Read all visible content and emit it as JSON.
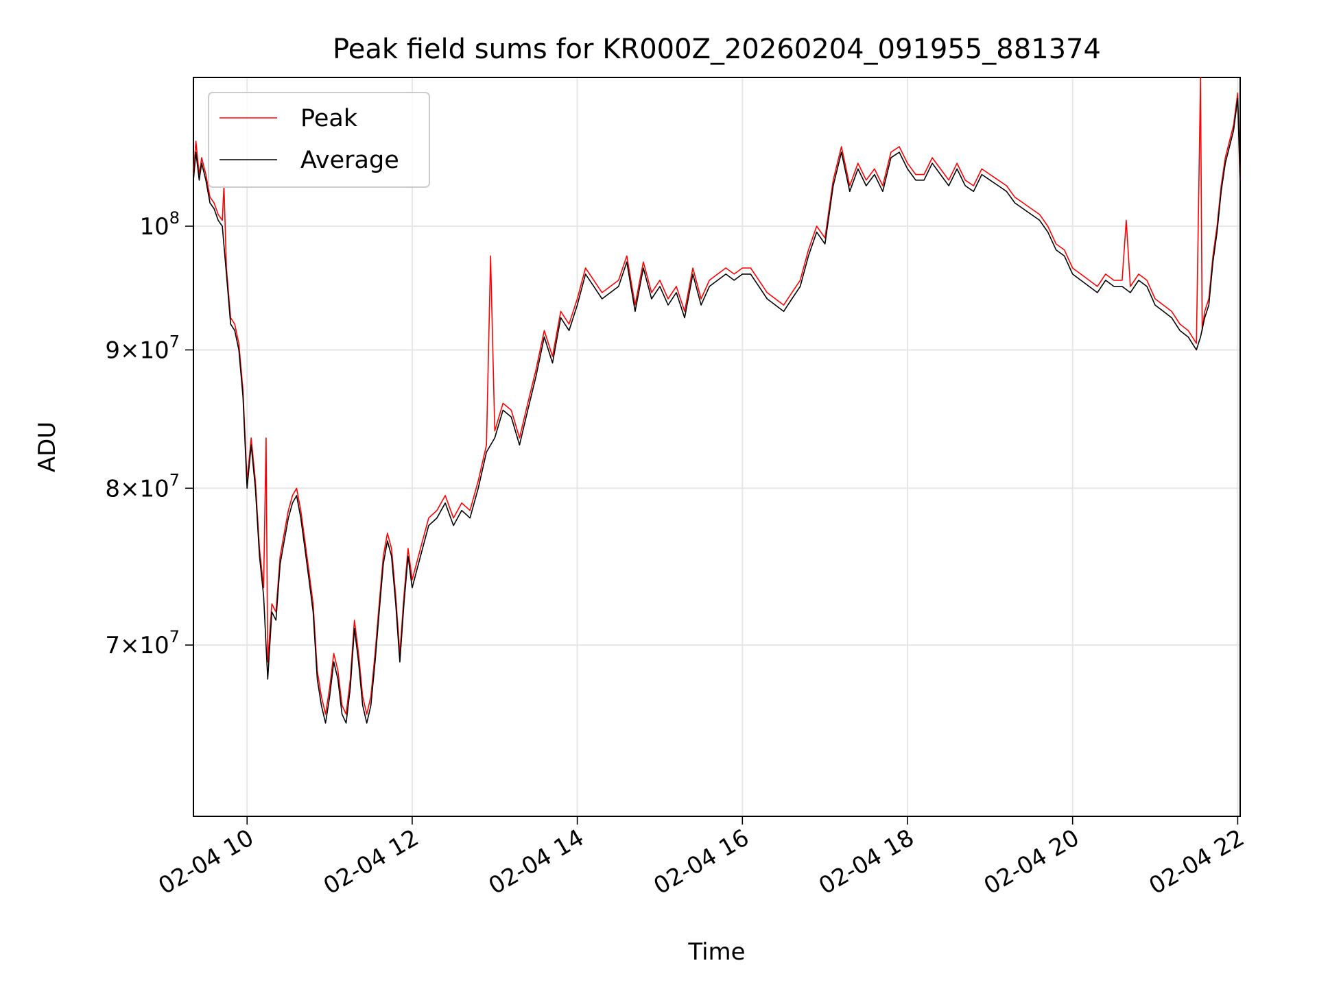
{
  "chart_data": {
    "type": "line",
    "title": "Peak field sums for KR000Z_20260204_091955_881374",
    "xlabel": "Time",
    "ylabel": "ADU",
    "x_unit": "hours since 02-04 00:00",
    "xlim": [
      9.35,
      22.03
    ],
    "ylim": [
      60500000,
      113500000
    ],
    "yscale": "log",
    "grid": true,
    "legend_position": "top-left",
    "x_ticks": [
      {
        "value": 10,
        "label": "02-04 10"
      },
      {
        "value": 12,
        "label": "02-04 12"
      },
      {
        "value": 14,
        "label": "02-04 14"
      },
      {
        "value": 16,
        "label": "02-04 16"
      },
      {
        "value": 18,
        "label": "02-04 18"
      },
      {
        "value": 20,
        "label": "02-04 20"
      },
      {
        "value": 22,
        "label": "02-04 22"
      }
    ],
    "y_ticks": [
      {
        "value": 70000000,
        "mantissa": "7",
        "exponent": "7"
      },
      {
        "value": 80000000,
        "mantissa": "8",
        "exponent": "7"
      },
      {
        "value": 90000000,
        "mantissa": "9",
        "exponent": "7"
      },
      {
        "value": 100000000,
        "mantissa": "",
        "exponent": "8"
      }
    ],
    "series": [
      {
        "name": "Average",
        "color": "#000000",
        "x": [
          9.35,
          9.38,
          9.42,
          9.45,
          9.5,
          9.55,
          9.6,
          9.65,
          9.7,
          9.75,
          9.8,
          9.85,
          9.9,
          9.95,
          10.0,
          10.05,
          10.1,
          10.15,
          10.2,
          10.25,
          10.3,
          10.35,
          10.4,
          10.45,
          10.5,
          10.55,
          10.6,
          10.65,
          10.7,
          10.75,
          10.8,
          10.85,
          10.9,
          10.95,
          11.0,
          11.05,
          11.1,
          11.15,
          11.2,
          11.25,
          11.3,
          11.35,
          11.4,
          11.45,
          11.5,
          11.55,
          11.6,
          11.65,
          11.7,
          11.75,
          11.8,
          11.85,
          11.9,
          11.95,
          12.0,
          12.1,
          12.2,
          12.3,
          12.4,
          12.5,
          12.6,
          12.7,
          12.8,
          12.9,
          13.0,
          13.1,
          13.2,
          13.3,
          13.4,
          13.5,
          13.6,
          13.7,
          13.8,
          13.9,
          14.0,
          14.1,
          14.2,
          14.3,
          14.4,
          14.5,
          14.6,
          14.7,
          14.8,
          14.9,
          15.0,
          15.1,
          15.2,
          15.3,
          15.4,
          15.5,
          15.6,
          15.7,
          15.8,
          15.9,
          16.0,
          16.1,
          16.2,
          16.3,
          16.4,
          16.5,
          16.6,
          16.7,
          16.8,
          16.9,
          17.0,
          17.1,
          17.2,
          17.3,
          17.4,
          17.5,
          17.6,
          17.7,
          17.8,
          17.9,
          18.0,
          18.1,
          18.2,
          18.3,
          18.4,
          18.5,
          18.6,
          18.7,
          18.8,
          18.9,
          19.0,
          19.1,
          19.2,
          19.3,
          19.4,
          19.5,
          19.6,
          19.7,
          19.8,
          19.9,
          20.0,
          20.1,
          20.2,
          20.3,
          20.4,
          20.5,
          20.6,
          20.7,
          20.8,
          20.9,
          21.0,
          21.1,
          21.2,
          21.3,
          21.4,
          21.5,
          21.55,
          21.6,
          21.65,
          21.7,
          21.75,
          21.8,
          21.85,
          21.9,
          21.95,
          22.0,
          22.03
        ],
        "values": [
          104000000,
          106500000,
          104000000,
          105500000,
          104000000,
          102000000,
          101500000,
          100500000,
          100000000,
          96000000,
          92000000,
          91500000,
          90000000,
          86500000,
          80000000,
          83000000,
          80000000,
          75500000,
          73000000,
          68000000,
          72000000,
          71500000,
          75000000,
          76500000,
          78000000,
          79000000,
          79500000,
          78000000,
          76000000,
          74000000,
          72000000,
          68000000,
          66500000,
          65500000,
          67000000,
          69000000,
          68000000,
          66000000,
          65500000,
          67500000,
          71000000,
          69000000,
          66500000,
          65500000,
          66500000,
          69000000,
          72000000,
          75000000,
          76500000,
          75500000,
          72500000,
          69000000,
          72500000,
          75500000,
          73500000,
          75500000,
          77500000,
          78000000,
          79000000,
          77500000,
          78500000,
          78000000,
          80000000,
          82500000,
          83500000,
          85500000,
          85000000,
          83000000,
          85500000,
          88000000,
          91000000,
          89000000,
          92500000,
          91500000,
          93500000,
          96000000,
          95000000,
          94000000,
          94500000,
          95000000,
          97000000,
          93000000,
          96500000,
          94000000,
          95000000,
          93500000,
          94500000,
          92500000,
          96000000,
          93500000,
          95000000,
          95500000,
          96000000,
          95500000,
          96000000,
          96000000,
          95000000,
          94000000,
          93500000,
          93000000,
          94000000,
          95000000,
          97500000,
          99500000,
          98500000,
          103500000,
          106500000,
          103000000,
          105000000,
          103500000,
          104500000,
          103000000,
          106000000,
          106500000,
          105000000,
          104000000,
          104000000,
          105500000,
          104500000,
          103500000,
          105000000,
          103500000,
          103000000,
          104500000,
          104000000,
          103500000,
          103000000,
          102000000,
          101500000,
          101000000,
          100500000,
          99500000,
          98000000,
          97500000,
          96000000,
          95500000,
          95000000,
          94500000,
          95500000,
          95000000,
          95000000,
          94500000,
          95500000,
          95000000,
          93500000,
          93000000,
          92500000,
          91500000,
          91000000,
          90000000,
          91000000,
          92500000,
          93500000,
          97000000,
          99500000,
          103000000,
          105500000,
          107000000,
          108500000,
          111500000,
          103500000
        ]
      },
      {
        "name": "Peak",
        "color": "#ff0000",
        "x": [
          9.35,
          9.38,
          9.42,
          9.45,
          9.5,
          9.55,
          9.6,
          9.65,
          9.7,
          9.72,
          9.75,
          9.8,
          9.85,
          9.9,
          9.95,
          10.0,
          10.05,
          10.1,
          10.15,
          10.2,
          10.23,
          10.25,
          10.3,
          10.35,
          10.4,
          10.45,
          10.5,
          10.55,
          10.6,
          10.65,
          10.7,
          10.75,
          10.8,
          10.85,
          10.9,
          10.95,
          11.0,
          11.05,
          11.1,
          11.15,
          11.2,
          11.25,
          11.3,
          11.35,
          11.4,
          11.45,
          11.5,
          11.55,
          11.6,
          11.65,
          11.7,
          11.75,
          11.8,
          11.85,
          11.9,
          11.95,
          12.0,
          12.1,
          12.2,
          12.3,
          12.4,
          12.5,
          12.6,
          12.7,
          12.8,
          12.9,
          12.95,
          13.0,
          13.1,
          13.2,
          13.3,
          13.4,
          13.5,
          13.6,
          13.7,
          13.8,
          13.9,
          14.0,
          14.1,
          14.2,
          14.3,
          14.4,
          14.5,
          14.6,
          14.7,
          14.8,
          14.9,
          15.0,
          15.1,
          15.2,
          15.3,
          15.4,
          15.5,
          15.6,
          15.7,
          15.8,
          15.9,
          16.0,
          16.1,
          16.2,
          16.3,
          16.4,
          16.5,
          16.6,
          16.7,
          16.8,
          16.9,
          17.0,
          17.1,
          17.2,
          17.3,
          17.4,
          17.5,
          17.6,
          17.7,
          17.8,
          17.9,
          18.0,
          18.1,
          18.2,
          18.3,
          18.4,
          18.5,
          18.6,
          18.7,
          18.8,
          18.9,
          19.0,
          19.1,
          19.2,
          19.3,
          19.4,
          19.5,
          19.6,
          19.7,
          19.8,
          19.9,
          20.0,
          20.1,
          20.2,
          20.3,
          20.4,
          20.5,
          20.6,
          20.65,
          20.7,
          20.8,
          20.9,
          21.0,
          21.1,
          21.2,
          21.3,
          21.4,
          21.5,
          21.55,
          21.57,
          21.6,
          21.65,
          21.7,
          21.75,
          21.8,
          21.85,
          21.9,
          21.95,
          22.0,
          22.03
        ],
        "values": [
          104500000,
          107500000,
          104500000,
          106000000,
          104500000,
          102500000,
          102000000,
          101000000,
          100500000,
          103500000,
          96500000,
          92500000,
          92000000,
          90500000,
          87000000,
          80500000,
          83500000,
          80500000,
          76000000,
          73500000,
          83500000,
          69000000,
          72500000,
          72000000,
          75500000,
          77000000,
          78500000,
          79500000,
          80000000,
          78500000,
          76500000,
          74500000,
          72500000,
          68500000,
          67000000,
          66000000,
          67500000,
          69500000,
          68500000,
          66500000,
          66000000,
          68000000,
          71500000,
          69500000,
          67000000,
          66000000,
          67000000,
          69500000,
          72500000,
          75500000,
          77000000,
          76000000,
          73000000,
          69500000,
          73000000,
          76000000,
          74000000,
          76000000,
          78000000,
          78500000,
          79500000,
          78000000,
          79000000,
          78500000,
          80500000,
          83000000,
          97500000,
          84000000,
          86000000,
          85500000,
          83500000,
          86000000,
          88500000,
          91500000,
          89500000,
          93000000,
          92000000,
          94000000,
          96500000,
          95500000,
          94500000,
          95000000,
          95500000,
          97500000,
          93500000,
          97000000,
          94500000,
          95500000,
          94000000,
          95000000,
          93000000,
          96500000,
          94000000,
          95500000,
          96000000,
          96500000,
          96000000,
          96500000,
          96500000,
          95500000,
          94500000,
          94000000,
          93500000,
          94500000,
          95500000,
          98000000,
          100000000,
          99000000,
          104000000,
          107000000,
          103500000,
          105500000,
          104000000,
          105000000,
          103500000,
          106500000,
          107000000,
          105500000,
          104500000,
          104500000,
          106000000,
          105000000,
          104000000,
          105500000,
          104000000,
          103500000,
          105000000,
          104500000,
          104000000,
          103500000,
          102500000,
          102000000,
          101500000,
          101000000,
          100000000,
          98500000,
          98000000,
          96500000,
          96000000,
          95500000,
          95000000,
          96000000,
          95500000,
          95500000,
          100500000,
          95000000,
          96000000,
          95500000,
          94000000,
          93500000,
          93000000,
          92000000,
          91500000,
          90500000,
          113500000,
          91500000,
          93000000,
          94000000,
          97500000,
          100000000,
          103500000,
          106000000,
          107500000,
          109000000,
          112000000,
          104000000
        ]
      }
    ]
  }
}
